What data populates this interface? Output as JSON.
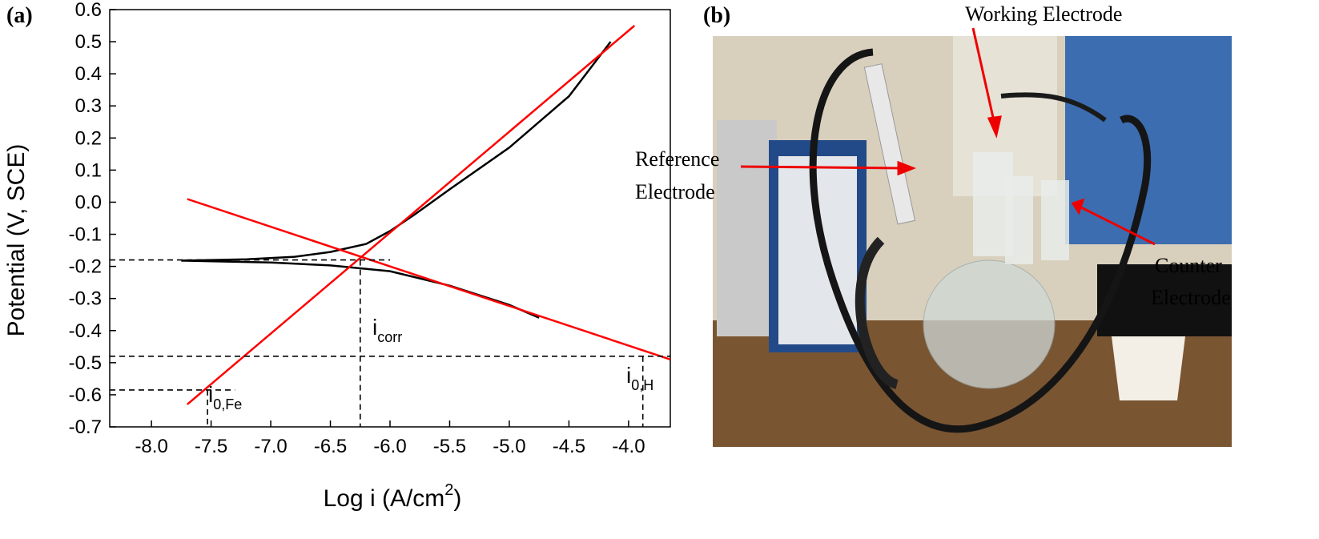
{
  "chart_data": {
    "type": "line",
    "panel_label": "(a)",
    "y_label": "Potential (V, SCE)",
    "x_label_parts": [
      "Log i (A/cm",
      "2",
      ")"
    ],
    "xlim": [
      -8.35,
      -3.65
    ],
    "ylim": [
      -0.7,
      0.6
    ],
    "xticks": [
      {
        "value": -8,
        "label": "-8.0"
      },
      -7.5,
      {
        "value": -7,
        "label": "-7.0"
      },
      -6.5,
      {
        "value": -6,
        "label": "-6.0"
      },
      -5.5,
      {
        "value": -5,
        "label": "-5.0"
      },
      -4.5,
      {
        "value": -4,
        "label": "-4.0"
      }
    ],
    "yticks": [
      0.6,
      0.5,
      0.4,
      0.3,
      0.2,
      0.1,
      {
        "value": 0,
        "label": "0.0"
      },
      -0.1,
      -0.2,
      -0.3,
      -0.4,
      -0.5,
      -0.6,
      -0.7
    ],
    "series": [
      {
        "color": "#000000",
        "x": [
          -7.75,
          -7.2,
          -6.8,
          -6.5,
          -6.2,
          -6.0,
          -5.8,
          -5.5,
          -5.0,
          -4.5,
          -4.15
        ],
        "values": [
          -0.182,
          -0.178,
          -0.17,
          -0.155,
          -0.13,
          -0.09,
          -0.04,
          0.04,
          0.17,
          0.33,
          0.5
        ]
      },
      {
        "color": "#000000",
        "x": [
          -7.75,
          -7.0,
          -6.5,
          -6.0,
          -5.5,
          -5.0,
          -4.75
        ],
        "values": [
          -0.182,
          -0.188,
          -0.197,
          -0.215,
          -0.26,
          -0.32,
          -0.36
        ]
      },
      {
        "color": "#ff0000",
        "x": [
          -7.7,
          -3.95
        ],
        "values": [
          -0.63,
          0.55
        ]
      },
      {
        "color": "#ff0000",
        "x": [
          -7.7,
          -3.65
        ],
        "values": [
          0.01,
          -0.49
        ]
      },
      {
        "color": "#000000",
        "dashed": true,
        "x": [
          -8.35,
          -6.0
        ],
        "values": [
          -0.18,
          -0.18
        ]
      },
      {
        "color": "#000000",
        "dashed": true,
        "x": [
          -6.25,
          -6.25
        ],
        "values": [
          -0.18,
          -0.7
        ]
      },
      {
        "color": "#000000",
        "dashed": true,
        "x": [
          -8.35,
          -3.65
        ],
        "values": [
          -0.48,
          -0.48
        ]
      },
      {
        "color": "#000000",
        "dashed": true,
        "x": [
          -3.88,
          -3.88
        ],
        "values": [
          -0.48,
          -0.7
        ]
      },
      {
        "color": "#000000",
        "dashed": true,
        "x": [
          -8.35,
          -7.3
        ],
        "values": [
          -0.585,
          -0.585
        ]
      },
      {
        "color": "#000000",
        "dashed": true,
        "x": [
          -7.53,
          -7.53
        ],
        "values": [
          -0.585,
          -0.7
        ]
      }
    ],
    "annotations": [
      {
        "text": "i",
        "sub": "corr"
      },
      {
        "text": "i",
        "sub": "0,Fe"
      },
      {
        "text": "i",
        "sub": "0,H"
      }
    ]
  },
  "panel_b": {
    "label": "(b)",
    "callouts": [
      {
        "lines": [
          "Working Electrode"
        ]
      },
      {
        "lines": [
          "Reference",
          "Electrode"
        ]
      },
      {
        "lines": [
          "Counter",
          "Electrode"
        ]
      }
    ]
  }
}
